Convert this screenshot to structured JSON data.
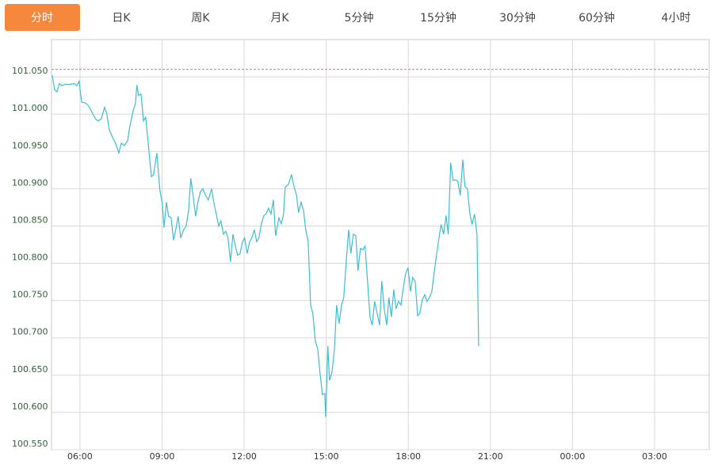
{
  "tabs": [
    "分时",
    "日K",
    "周K",
    "月K",
    "5分钟",
    "15分钟",
    "30分钟",
    "60分钟",
    "4小时"
  ],
  "active_tab": 0,
  "chart_data": {
    "type": "line",
    "color": "#3dbdd1",
    "ref_line": 101.06,
    "ref_color": "#e07b39",
    "grid": true,
    "xlim": [
      4.96,
      29.0
    ],
    "ylim": [
      100.55,
      101.1
    ],
    "xticks": [
      {
        "value": 6,
        "label": "06:00"
      },
      {
        "value": 9,
        "label": "09:00"
      },
      {
        "value": 12,
        "label": "12:00"
      },
      {
        "value": 15,
        "label": "15:00"
      },
      {
        "value": 18,
        "label": "18:00"
      },
      {
        "value": 21,
        "label": "21:00"
      },
      {
        "value": 24,
        "label": "00:00"
      },
      {
        "value": 27,
        "label": "03:00"
      }
    ],
    "yticks": [
      {
        "value": 100.55,
        "label": "100.550"
      },
      {
        "value": 100.6,
        "label": "100.600"
      },
      {
        "value": 100.65,
        "label": "100.650"
      },
      {
        "value": 100.7,
        "label": "100.700"
      },
      {
        "value": 100.75,
        "label": "100.750"
      },
      {
        "value": 100.8,
        "label": "100.800"
      },
      {
        "value": 100.85,
        "label": "100.850"
      },
      {
        "value": 100.9,
        "label": "100.900"
      },
      {
        "value": 100.95,
        "label": "100.950"
      },
      {
        "value": 101.0,
        "label": "101.000"
      },
      {
        "value": 101.05,
        "label": "101.050"
      }
    ],
    "x": [
      4.99,
      5.07,
      5.16,
      5.25,
      5.33,
      5.45,
      5.62,
      5.8,
      5.88,
      5.97,
      6.06,
      6.2,
      6.32,
      6.46,
      6.58,
      6.67,
      6.78,
      6.9,
      6.98,
      7.07,
      7.19,
      7.3,
      7.42,
      7.51,
      7.62,
      7.74,
      7.82,
      7.94,
      8.03,
      8.08,
      8.14,
      8.23,
      8.32,
      8.4,
      8.52,
      8.61,
      8.69,
      8.81,
      8.92,
      9.01,
      9.07,
      9.16,
      9.24,
      9.33,
      9.42,
      9.5,
      9.59,
      9.68,
      9.79,
      9.88,
      9.97,
      10.05,
      10.14,
      10.23,
      10.31,
      10.4,
      10.49,
      10.58,
      10.69,
      10.81,
      10.89,
      10.98,
      11.07,
      11.15,
      11.24,
      11.33,
      11.41,
      11.5,
      11.59,
      11.68,
      11.76,
      11.85,
      11.94,
      12.02,
      12.11,
      12.2,
      12.28,
      12.37,
      12.46,
      12.54,
      12.63,
      12.72,
      12.8,
      12.89,
      12.98,
      13.07,
      13.15,
      13.27,
      13.36,
      13.44,
      13.5,
      13.62,
      13.73,
      13.82,
      13.91,
      13.99,
      14.08,
      14.17,
      14.25,
      14.34,
      14.43,
      14.51,
      14.6,
      14.69,
      14.77,
      14.86,
      14.95,
      14.98,
      15.06,
      15.12,
      15.21,
      15.3,
      15.38,
      15.47,
      15.56,
      15.64,
      15.73,
      15.82,
      15.9,
      15.99,
      16.08,
      16.16,
      16.25,
      16.34,
      16.42,
      16.51,
      16.6,
      16.68,
      16.77,
      16.86,
      16.95,
      17.03,
      17.12,
      17.21,
      17.29,
      17.38,
      17.47,
      17.55,
      17.64,
      17.73,
      17.81,
      17.9,
      17.99,
      18.08,
      18.16,
      18.25,
      18.34,
      18.42,
      18.51,
      18.6,
      18.68,
      18.77,
      18.86,
      18.94,
      19.03,
      19.12,
      19.2,
      19.29,
      19.38,
      19.46,
      19.55,
      19.64,
      19.72,
      19.81,
      19.9,
      19.99,
      20.07,
      20.16,
      20.25,
      20.33,
      20.42,
      20.51,
      20.57
    ],
    "values": [
      101.052,
      101.033,
      101.03,
      101.041,
      101.038,
      101.04,
      101.04,
      101.041,
      101.038,
      101.044,
      101.016,
      101.015,
      101.011,
      101.001,
      100.993,
      100.991,
      100.994,
      101.009,
      101.001,
      100.979,
      100.969,
      100.961,
      100.948,
      100.961,
      100.958,
      100.964,
      100.983,
      101.004,
      101.015,
      101.039,
      101.025,
      101.027,
      100.991,
      100.996,
      100.951,
      100.916,
      100.919,
      100.948,
      100.898,
      100.88,
      100.848,
      100.882,
      100.863,
      100.861,
      100.831,
      100.845,
      100.863,
      100.834,
      100.845,
      100.85,
      100.871,
      100.914,
      100.889,
      100.863,
      100.882,
      100.896,
      100.9,
      100.892,
      100.885,
      100.9,
      100.882,
      100.866,
      100.85,
      100.857,
      100.839,
      100.843,
      100.834,
      100.802,
      100.839,
      100.823,
      100.811,
      100.813,
      100.829,
      100.834,
      100.813,
      100.829,
      100.834,
      100.845,
      100.829,
      100.834,
      100.853,
      100.864,
      100.866,
      100.874,
      100.866,
      100.885,
      100.837,
      100.861,
      100.853,
      100.866,
      100.902,
      100.906,
      100.919,
      100.903,
      100.892,
      100.868,
      100.882,
      100.871,
      100.845,
      100.829,
      100.744,
      100.733,
      100.696,
      100.685,
      100.654,
      100.624,
      100.625,
      100.594,
      100.689,
      100.643,
      100.654,
      100.685,
      100.744,
      100.719,
      100.744,
      100.754,
      100.802,
      100.845,
      100.813,
      100.839,
      100.837,
      100.79,
      100.82,
      100.818,
      100.823,
      100.776,
      100.728,
      100.717,
      100.749,
      100.733,
      100.717,
      100.776,
      100.739,
      100.717,
      100.754,
      100.728,
      100.765,
      100.739,
      100.749,
      100.744,
      100.765,
      100.786,
      100.794,
      100.762,
      100.781,
      100.776,
      100.73,
      100.733,
      100.751,
      100.758,
      100.749,
      100.754,
      100.762,
      100.786,
      100.811,
      100.834,
      100.852,
      100.839,
      100.864,
      100.839,
      100.935,
      100.911,
      100.912,
      100.91,
      100.891,
      100.939,
      100.903,
      100.9,
      100.866,
      100.852,
      100.866,
      100.839,
      100.689
    ]
  }
}
